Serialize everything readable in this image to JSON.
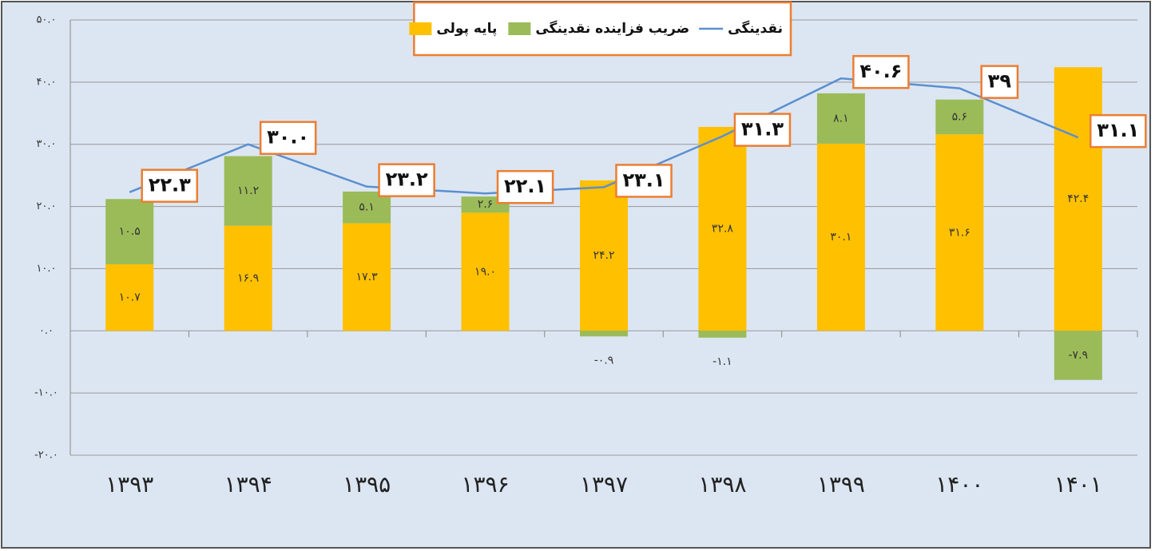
{
  "chart_data": {
    "type": "stacked-bar-line",
    "categories": [
      "۱۳۹۳",
      "۱۳۹۴",
      "۱۳۹۵",
      "۱۳۹۶",
      "۱۳۹۷",
      "۱۳۹۸",
      "۱۳۹۹",
      "۱۴۰۰",
      "۱۴۰۱"
    ],
    "series": [
      {
        "name": "پایه پولی",
        "color": "#ffc000",
        "kind": "bar",
        "values": [
          10.7,
          16.9,
          17.3,
          19.0,
          24.2,
          32.8,
          30.1,
          31.6,
          42.4
        ],
        "value_labels": [
          "۱۰.۷",
          "۱۶.۹",
          "۱۷.۳",
          "۱۹.۰",
          "۲۴.۲",
          "۳۲.۸",
          "۳۰.۱",
          "۳۱.۶",
          "۴۲.۴"
        ]
      },
      {
        "name": "ضریب فزاینده نقدینگی",
        "color": "#9bbb59",
        "kind": "bar",
        "values": [
          10.5,
          11.2,
          5.1,
          2.6,
          -0.9,
          -1.1,
          8.1,
          5.6,
          -7.9
        ],
        "value_labels": [
          "۱۰.۵",
          "۱۱.۲",
          "۵.۱",
          "۲.۶",
          "-۰.۹",
          "-۱.۱",
          "۸.۱",
          "۵.۶",
          "-۷.۹"
        ]
      },
      {
        "name": "نقدینگی",
        "color": "#5b8fd0",
        "kind": "line",
        "values": [
          22.3,
          30.0,
          23.2,
          22.1,
          23.1,
          31.3,
          40.6,
          39,
          31.1
        ],
        "value_labels": [
          "۲۲.۳",
          "۳۰.۰",
          "۲۳.۲",
          "۲۲.۱",
          "۲۳.۱",
          "۳۱.۳",
          "۴۰.۶",
          "۳۹",
          "۳۱.۱"
        ]
      }
    ],
    "ylim": [
      -20,
      50
    ],
    "yticks": [
      {
        "value": -20,
        "label": "-۲۰.۰"
      },
      {
        "value": -10,
        "label": "-۱۰.۰"
      },
      {
        "value": 0,
        "label": "۰.۰"
      },
      {
        "value": 10,
        "label": "۱۰.۰"
      },
      {
        "value": 20,
        "label": "۲۰.۰"
      },
      {
        "value": 30,
        "label": "۳۰.۰"
      },
      {
        "value": 40,
        "label": "۴۰.۰"
      },
      {
        "value": 50,
        "label": "۵۰.۰"
      }
    ],
    "grid": true
  }
}
